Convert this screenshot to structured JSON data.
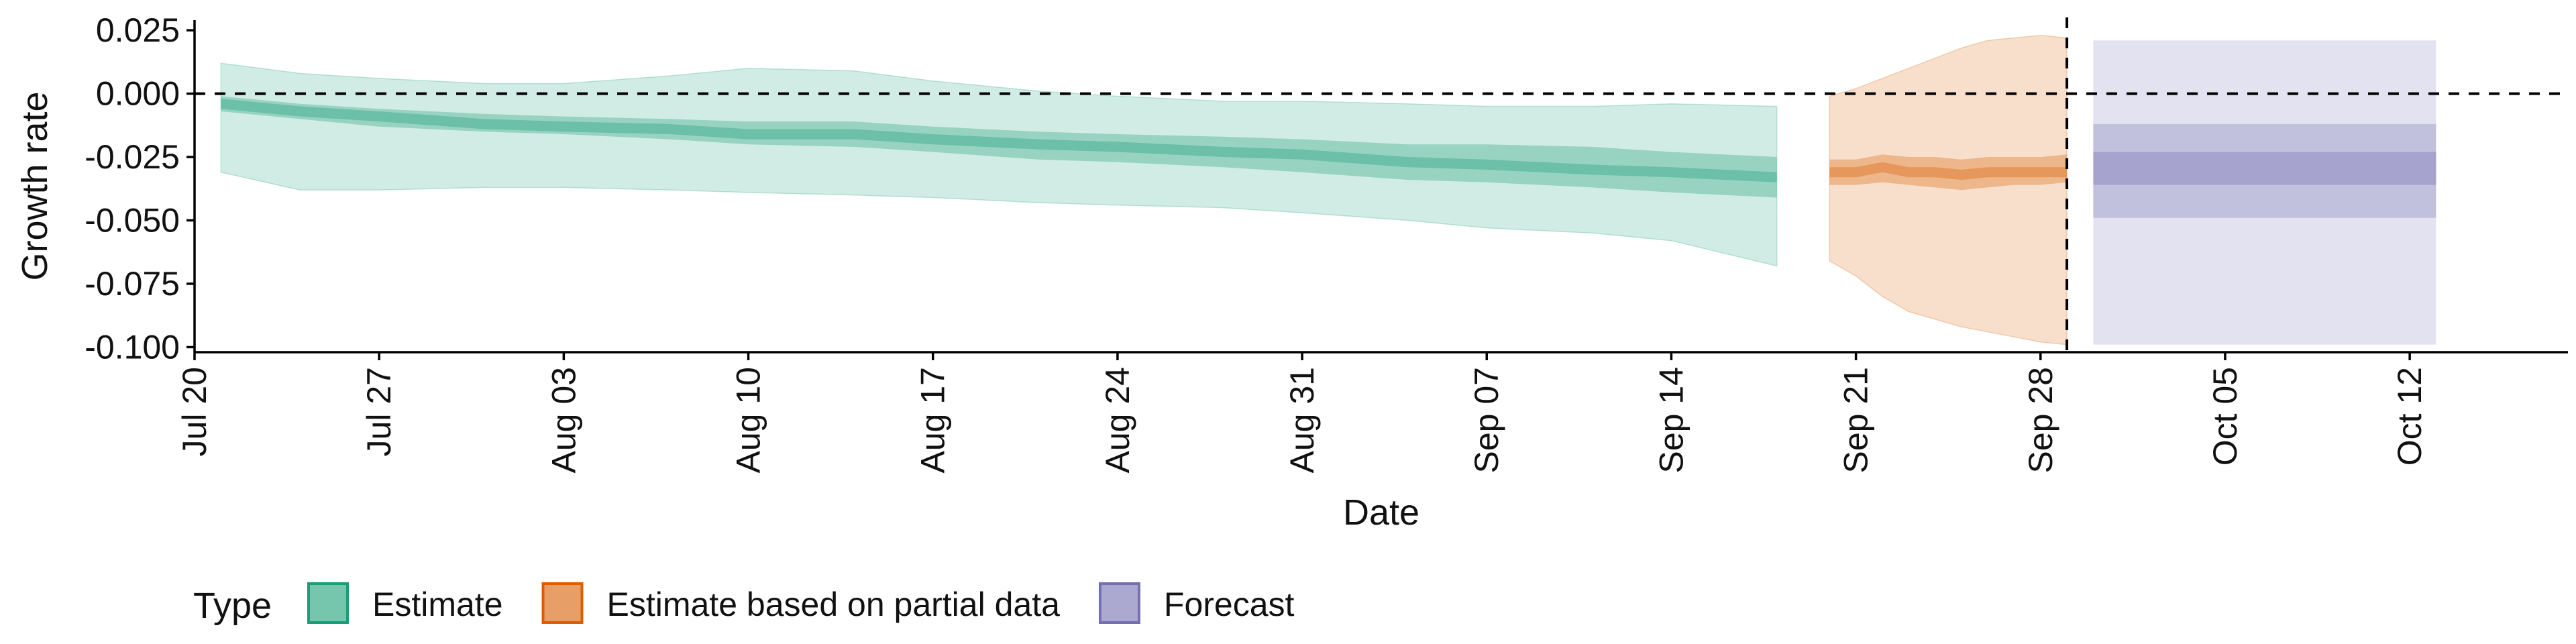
{
  "chart_data": {
    "type": "area",
    "xlabel": "Date",
    "ylabel": "Growth rate",
    "x_ticks": [
      "Jul 20",
      "Jul 27",
      "Aug 03",
      "Aug 10",
      "Aug 17",
      "Aug 24",
      "Aug 31",
      "Sep 07",
      "Sep 14",
      "Sep 21",
      "Sep 28",
      "Oct 05",
      "Oct 12"
    ],
    "x_tick_dates": [
      "2020-07-20",
      "2020-07-27",
      "2020-08-03",
      "2020-08-10",
      "2020-08-17",
      "2020-08-24",
      "2020-08-31",
      "2020-09-07",
      "2020-09-14",
      "2020-09-21",
      "2020-09-28",
      "2020-10-05",
      "2020-10-12"
    ],
    "xlim": [
      "2020-07-20",
      "2020-10-18"
    ],
    "ylim": [
      -0.102,
      0.029
    ],
    "y_ticks": [
      0.025,
      0.0,
      -0.025,
      -0.05,
      -0.075,
      -0.1
    ],
    "y_tick_labels": [
      "0.025",
      "0.000",
      "-0.025",
      "-0.050",
      "-0.075",
      "-0.100"
    ],
    "reference_lines": [
      {
        "orientation": "horizontal",
        "value": 0.0,
        "style": "dashed"
      },
      {
        "orientation": "vertical",
        "value": "2020-09-29",
        "style": "dashed"
      }
    ],
    "legend": {
      "title": "Type",
      "position": "bottom-left",
      "entries": [
        "Estimate",
        "Estimate based on partial data",
        "Forecast"
      ]
    },
    "series": [
      {
        "name": "Estimate",
        "color": "#1b9e77",
        "x": [
          "2020-07-21",
          "2020-07-24",
          "2020-07-27",
          "2020-07-31",
          "2020-08-03",
          "2020-08-07",
          "2020-08-10",
          "2020-08-14",
          "2020-08-17",
          "2020-08-21",
          "2020-08-24",
          "2020-08-28",
          "2020-08-31",
          "2020-09-04",
          "2020-09-07",
          "2020-09-11",
          "2020-09-14",
          "2020-09-18"
        ],
        "median": [
          -0.004,
          -0.007,
          -0.009,
          -0.012,
          -0.013,
          -0.014,
          -0.016,
          -0.016,
          -0.018,
          -0.02,
          -0.021,
          -0.023,
          -0.024,
          -0.027,
          -0.028,
          -0.03,
          -0.031,
          -0.033
        ],
        "inner_lower": [
          -0.007,
          -0.01,
          -0.013,
          -0.015,
          -0.016,
          -0.018,
          -0.02,
          -0.021,
          -0.023,
          -0.026,
          -0.027,
          -0.029,
          -0.031,
          -0.034,
          -0.035,
          -0.037,
          -0.039,
          -0.041
        ],
        "inner_upper": [
          -0.001,
          -0.004,
          -0.006,
          -0.008,
          -0.009,
          -0.01,
          -0.011,
          -0.011,
          -0.013,
          -0.015,
          -0.016,
          -0.017,
          -0.018,
          -0.02,
          -0.02,
          -0.021,
          -0.023,
          -0.025
        ],
        "outer_lower": [
          -0.031,
          -0.038,
          -0.038,
          -0.037,
          -0.037,
          -0.038,
          -0.039,
          -0.04,
          -0.041,
          -0.043,
          -0.044,
          -0.045,
          -0.047,
          -0.05,
          -0.053,
          -0.055,
          -0.058,
          -0.068
        ],
        "outer_upper": [
          0.012,
          0.008,
          0.006,
          0.004,
          0.004,
          0.007,
          0.01,
          0.009,
          0.005,
          0.001,
          -0.001,
          -0.003,
          -0.003,
          -0.004,
          -0.005,
          -0.005,
          -0.004,
          -0.005
        ]
      },
      {
        "name": "Estimate based on partial data",
        "color": "#d95f02",
        "x": [
          "2020-09-20",
          "2020-09-21",
          "2020-09-22",
          "2020-09-23",
          "2020-09-24",
          "2020-09-25",
          "2020-09-26",
          "2020-09-27",
          "2020-09-28",
          "2020-09-29"
        ],
        "median": [
          -0.031,
          -0.031,
          -0.029,
          -0.031,
          -0.031,
          -0.032,
          -0.031,
          -0.031,
          -0.031,
          -0.031
        ],
        "inner_lower": [
          -0.036,
          -0.036,
          -0.035,
          -0.036,
          -0.037,
          -0.038,
          -0.037,
          -0.036,
          -0.036,
          -0.035
        ],
        "inner_upper": [
          -0.026,
          -0.026,
          -0.024,
          -0.025,
          -0.025,
          -0.026,
          -0.025,
          -0.025,
          -0.025,
          -0.024
        ],
        "outer_lower": [
          -0.066,
          -0.072,
          -0.08,
          -0.086,
          -0.089,
          -0.092,
          -0.094,
          -0.096,
          -0.098,
          -0.099
        ],
        "outer_upper": [
          -0.001,
          0.002,
          0.006,
          0.01,
          0.014,
          0.018,
          0.021,
          0.022,
          0.023,
          0.022
        ]
      },
      {
        "name": "Forecast",
        "color": "#7570b3",
        "x": [
          "2020-09-30",
          "2020-10-13"
        ],
        "median": [
          -0.03,
          -0.03
        ],
        "inner_lower": [
          -0.036,
          -0.036
        ],
        "inner_upper": [
          -0.023,
          -0.023
        ],
        "mid_lower": [
          -0.049,
          -0.049
        ],
        "mid_upper": [
          -0.012,
          -0.012
        ],
        "outer_lower": [
          -0.099,
          -0.099
        ],
        "outer_upper": [
          0.021,
          0.021
        ]
      }
    ]
  }
}
